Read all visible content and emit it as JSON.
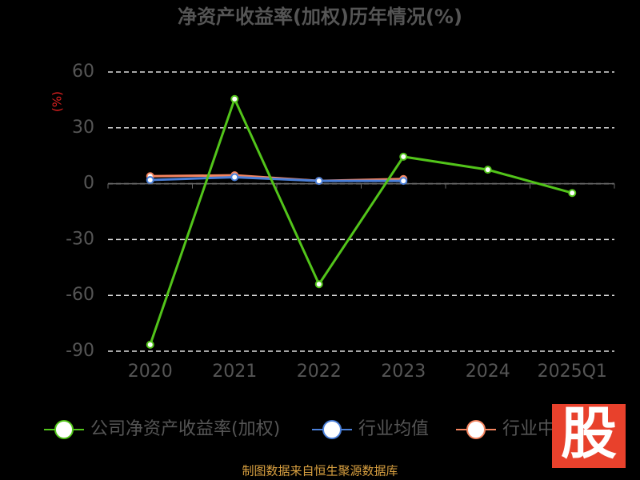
{
  "chart_data": {
    "type": "line",
    "title": "净资产收益率(加权)历年情况(%)",
    "y_label": "(%)",
    "categories": [
      "2020",
      "2021",
      "2022",
      "2023",
      "2024",
      "2025Q1"
    ],
    "series": [
      {
        "name": "公司净资产收益率(加权)",
        "color": "#52c41a",
        "values": [
          -86.5,
          45.5,
          -54,
          14.5,
          7.5,
          -5
        ]
      },
      {
        "name": "行业均值",
        "color": "#4a7fd8",
        "values": [
          2,
          3.5,
          1.5,
          1.5,
          null,
          null
        ]
      },
      {
        "name": "行业中值",
        "color": "#f4845f",
        "values": [
          4,
          4.5,
          1.5,
          2.5,
          null,
          null
        ]
      }
    ],
    "ylim": [
      -90,
      60
    ],
    "yticks": [
      60,
      30,
      0,
      -30,
      -60,
      -90
    ],
    "grid": true,
    "logo": "股",
    "footer": "制图数据来自恒生聚源数据库"
  }
}
